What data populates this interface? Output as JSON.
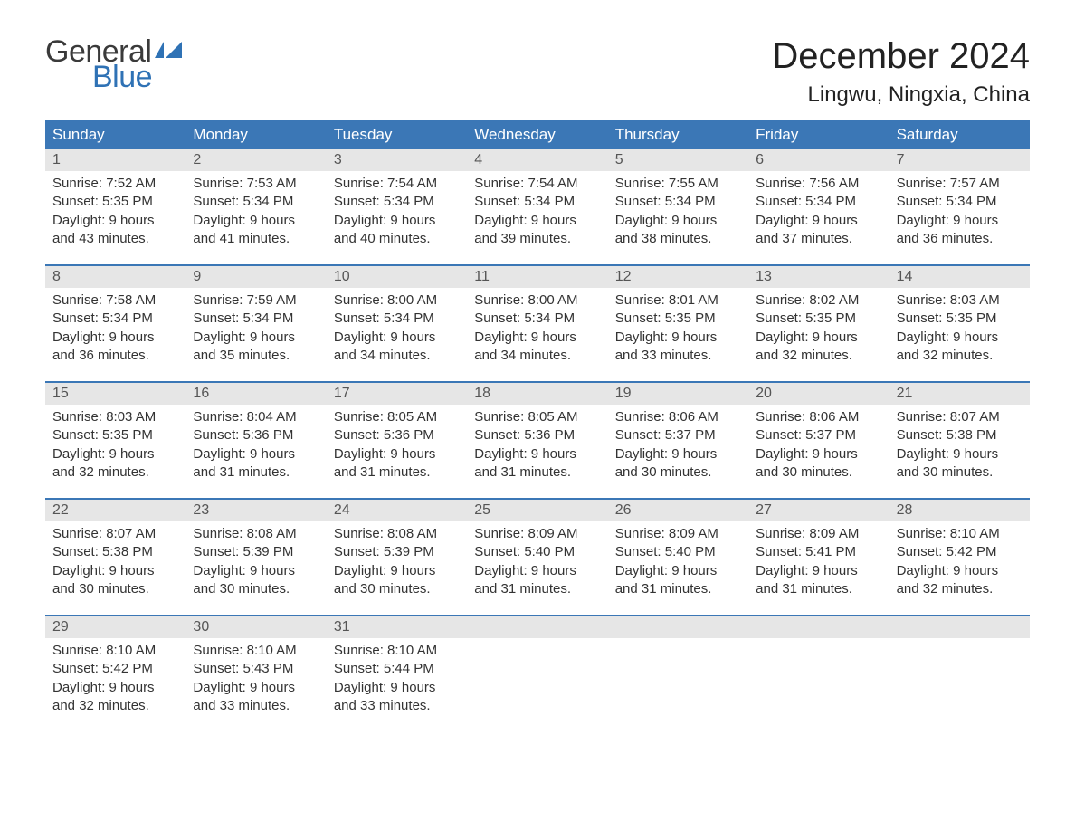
{
  "brand": {
    "word1": "General",
    "word2": "Blue"
  },
  "title": "December 2024",
  "location": "Lingwu, Ningxia, China",
  "colors": {
    "header_bg": "#3b77b6",
    "header_text": "#ffffff",
    "daynum_bg": "#e6e6e6",
    "text": "#333333",
    "brand_blue": "#2f72b5"
  },
  "day_names": [
    "Sunday",
    "Monday",
    "Tuesday",
    "Wednesday",
    "Thursday",
    "Friday",
    "Saturday"
  ],
  "weeks": [
    [
      {
        "n": "1",
        "sr": "7:52 AM",
        "ss": "5:35 PM",
        "dl1": "Daylight: 9 hours",
        "dl2": "and 43 minutes."
      },
      {
        "n": "2",
        "sr": "7:53 AM",
        "ss": "5:34 PM",
        "dl1": "Daylight: 9 hours",
        "dl2": "and 41 minutes."
      },
      {
        "n": "3",
        "sr": "7:54 AM",
        "ss": "5:34 PM",
        "dl1": "Daylight: 9 hours",
        "dl2": "and 40 minutes."
      },
      {
        "n": "4",
        "sr": "7:54 AM",
        "ss": "5:34 PM",
        "dl1": "Daylight: 9 hours",
        "dl2": "and 39 minutes."
      },
      {
        "n": "5",
        "sr": "7:55 AM",
        "ss": "5:34 PM",
        "dl1": "Daylight: 9 hours",
        "dl2": "and 38 minutes."
      },
      {
        "n": "6",
        "sr": "7:56 AM",
        "ss": "5:34 PM",
        "dl1": "Daylight: 9 hours",
        "dl2": "and 37 minutes."
      },
      {
        "n": "7",
        "sr": "7:57 AM",
        "ss": "5:34 PM",
        "dl1": "Daylight: 9 hours",
        "dl2": "and 36 minutes."
      }
    ],
    [
      {
        "n": "8",
        "sr": "7:58 AM",
        "ss": "5:34 PM",
        "dl1": "Daylight: 9 hours",
        "dl2": "and 36 minutes."
      },
      {
        "n": "9",
        "sr": "7:59 AM",
        "ss": "5:34 PM",
        "dl1": "Daylight: 9 hours",
        "dl2": "and 35 minutes."
      },
      {
        "n": "10",
        "sr": "8:00 AM",
        "ss": "5:34 PM",
        "dl1": "Daylight: 9 hours",
        "dl2": "and 34 minutes."
      },
      {
        "n": "11",
        "sr": "8:00 AM",
        "ss": "5:34 PM",
        "dl1": "Daylight: 9 hours",
        "dl2": "and 34 minutes."
      },
      {
        "n": "12",
        "sr": "8:01 AM",
        "ss": "5:35 PM",
        "dl1": "Daylight: 9 hours",
        "dl2": "and 33 minutes."
      },
      {
        "n": "13",
        "sr": "8:02 AM",
        "ss": "5:35 PM",
        "dl1": "Daylight: 9 hours",
        "dl2": "and 32 minutes."
      },
      {
        "n": "14",
        "sr": "8:03 AM",
        "ss": "5:35 PM",
        "dl1": "Daylight: 9 hours",
        "dl2": "and 32 minutes."
      }
    ],
    [
      {
        "n": "15",
        "sr": "8:03 AM",
        "ss": "5:35 PM",
        "dl1": "Daylight: 9 hours",
        "dl2": "and 32 minutes."
      },
      {
        "n": "16",
        "sr": "8:04 AM",
        "ss": "5:36 PM",
        "dl1": "Daylight: 9 hours",
        "dl2": "and 31 minutes."
      },
      {
        "n": "17",
        "sr": "8:05 AM",
        "ss": "5:36 PM",
        "dl1": "Daylight: 9 hours",
        "dl2": "and 31 minutes."
      },
      {
        "n": "18",
        "sr": "8:05 AM",
        "ss": "5:36 PM",
        "dl1": "Daylight: 9 hours",
        "dl2": "and 31 minutes."
      },
      {
        "n": "19",
        "sr": "8:06 AM",
        "ss": "5:37 PM",
        "dl1": "Daylight: 9 hours",
        "dl2": "and 30 minutes."
      },
      {
        "n": "20",
        "sr": "8:06 AM",
        "ss": "5:37 PM",
        "dl1": "Daylight: 9 hours",
        "dl2": "and 30 minutes."
      },
      {
        "n": "21",
        "sr": "8:07 AM",
        "ss": "5:38 PM",
        "dl1": "Daylight: 9 hours",
        "dl2": "and 30 minutes."
      }
    ],
    [
      {
        "n": "22",
        "sr": "8:07 AM",
        "ss": "5:38 PM",
        "dl1": "Daylight: 9 hours",
        "dl2": "and 30 minutes."
      },
      {
        "n": "23",
        "sr": "8:08 AM",
        "ss": "5:39 PM",
        "dl1": "Daylight: 9 hours",
        "dl2": "and 30 minutes."
      },
      {
        "n": "24",
        "sr": "8:08 AM",
        "ss": "5:39 PM",
        "dl1": "Daylight: 9 hours",
        "dl2": "and 30 minutes."
      },
      {
        "n": "25",
        "sr": "8:09 AM",
        "ss": "5:40 PM",
        "dl1": "Daylight: 9 hours",
        "dl2": "and 31 minutes."
      },
      {
        "n": "26",
        "sr": "8:09 AM",
        "ss": "5:40 PM",
        "dl1": "Daylight: 9 hours",
        "dl2": "and 31 minutes."
      },
      {
        "n": "27",
        "sr": "8:09 AM",
        "ss": "5:41 PM",
        "dl1": "Daylight: 9 hours",
        "dl2": "and 31 minutes."
      },
      {
        "n": "28",
        "sr": "8:10 AM",
        "ss": "5:42 PM",
        "dl1": "Daylight: 9 hours",
        "dl2": "and 32 minutes."
      }
    ],
    [
      {
        "n": "29",
        "sr": "8:10 AM",
        "ss": "5:42 PM",
        "dl1": "Daylight: 9 hours",
        "dl2": "and 32 minutes."
      },
      {
        "n": "30",
        "sr": "8:10 AM",
        "ss": "5:43 PM",
        "dl1": "Daylight: 9 hours",
        "dl2": "and 33 minutes."
      },
      {
        "n": "31",
        "sr": "8:10 AM",
        "ss": "5:44 PM",
        "dl1": "Daylight: 9 hours",
        "dl2": "and 33 minutes."
      },
      null,
      null,
      null,
      null
    ]
  ],
  "labels": {
    "sunrise": "Sunrise: ",
    "sunset": "Sunset: "
  }
}
